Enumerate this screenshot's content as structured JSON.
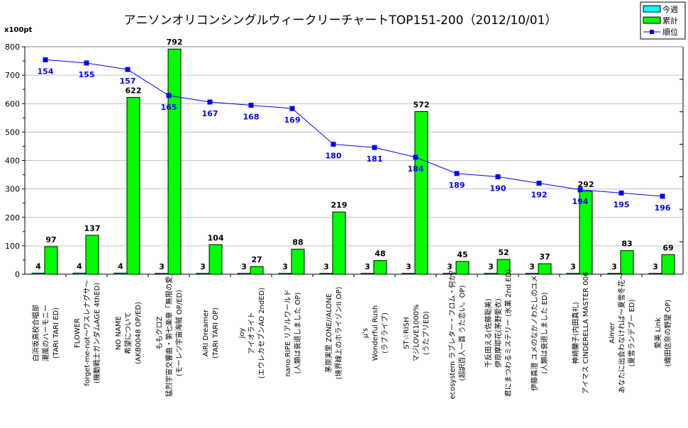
{
  "chart_data": {
    "type": "bar",
    "title": "アニソンオリコンシングルウィークリーチャートTOP151-200（2012/10/01）",
    "ylabel": "x100pt",
    "xlabel": "",
    "ylim": [
      0,
      800
    ],
    "yticks": [
      0,
      100,
      200,
      300,
      400,
      500,
      600,
      700,
      800
    ],
    "y2lim": [
      220,
      150
    ],
    "y2_reversed": true,
    "grid": true,
    "legend_position": "top-right",
    "legend": [
      {
        "name": "今週",
        "color": "#00ffff",
        "kind": "bar"
      },
      {
        "name": "累計",
        "color": "#00ff00",
        "kind": "bar"
      },
      {
        "name": "順位",
        "color": "#0000ff",
        "kind": "line"
      }
    ],
    "categories": [
      [
        "白浜坂高校合唱部",
        "潮風のハーモニー",
        "(TARI TARI ED)"
      ],
      [
        "FLOWER",
        "forget-me-not～ワスレナグサ～",
        "(機動戦士ガンダムAGE 4thED)"
      ],
      [
        "NO NAME",
        "希望について",
        "(AKB0048 OP/ED)"
      ],
      [
        "ももクロZ",
        "猛烈宇宙交響曲・第七楽章「無限の愛」",
        "(モーレツ宇宙海賊 OP/ED)"
      ],
      [
        "AiRI  Dreamer",
        "(TARI TARI OP)"
      ],
      [
        "joy",
        "アイオライト",
        "(エウレカセブンAO 2ndED)"
      ],
      [
        "nano.RIPE  リアルワールド",
        "(人類は衰退しました OP)"
      ],
      [
        "茅原実里  ZONE//ALONE",
        "(境界線上のホライゾンII OP)"
      ],
      [
        "μ's",
        "Wonderful Rush",
        "(ラブライブ)"
      ],
      [
        "ST☆RISH",
        "マジLOVE1000%",
        "(うたプリED)"
      ],
      [
        "ecosystem  ラブレター・フロム・何か？",
        "(超訳百人一首 うた恋い。OP)"
      ],
      [
        "千反田える(佐藤聡美)",
        "伊原摩耶花(茅野愛衣)",
        "君にまつわるミステリー (氷菓 2nd ED)"
      ],
      [
        "伊藤真澄  ユメのなかノわたしのユメ",
        "(人類は衰退しました ED)"
      ],
      [
        "神崎蘭子(内田真礼)",
        "アイマス CINDERELLA MASTER 006"
      ],
      [
        "Aimer",
        "あなたに出会わなければ～夏雪冬花～",
        "(夏雪ランデブー ED)"
      ],
      [
        "愛美  Link",
        "(織田信奈の野望 OP)"
      ]
    ],
    "series": [
      {
        "name": "今週",
        "values": [
          4,
          4,
          4,
          3,
          3,
          3,
          3,
          3,
          3,
          3,
          3,
          3,
          3,
          3,
          3,
          3
        ]
      },
      {
        "name": "累計",
        "values": [
          97,
          137,
          622,
          792,
          104,
          27,
          88,
          219,
          48,
          572,
          45,
          52,
          37,
          292,
          83,
          69
        ]
      },
      {
        "name": "順位",
        "axis": "secondary",
        "values": [
          154,
          155,
          157,
          165,
          167,
          168,
          169,
          180,
          181,
          184,
          189,
          190,
          192,
          194,
          195,
          196
        ]
      }
    ]
  }
}
